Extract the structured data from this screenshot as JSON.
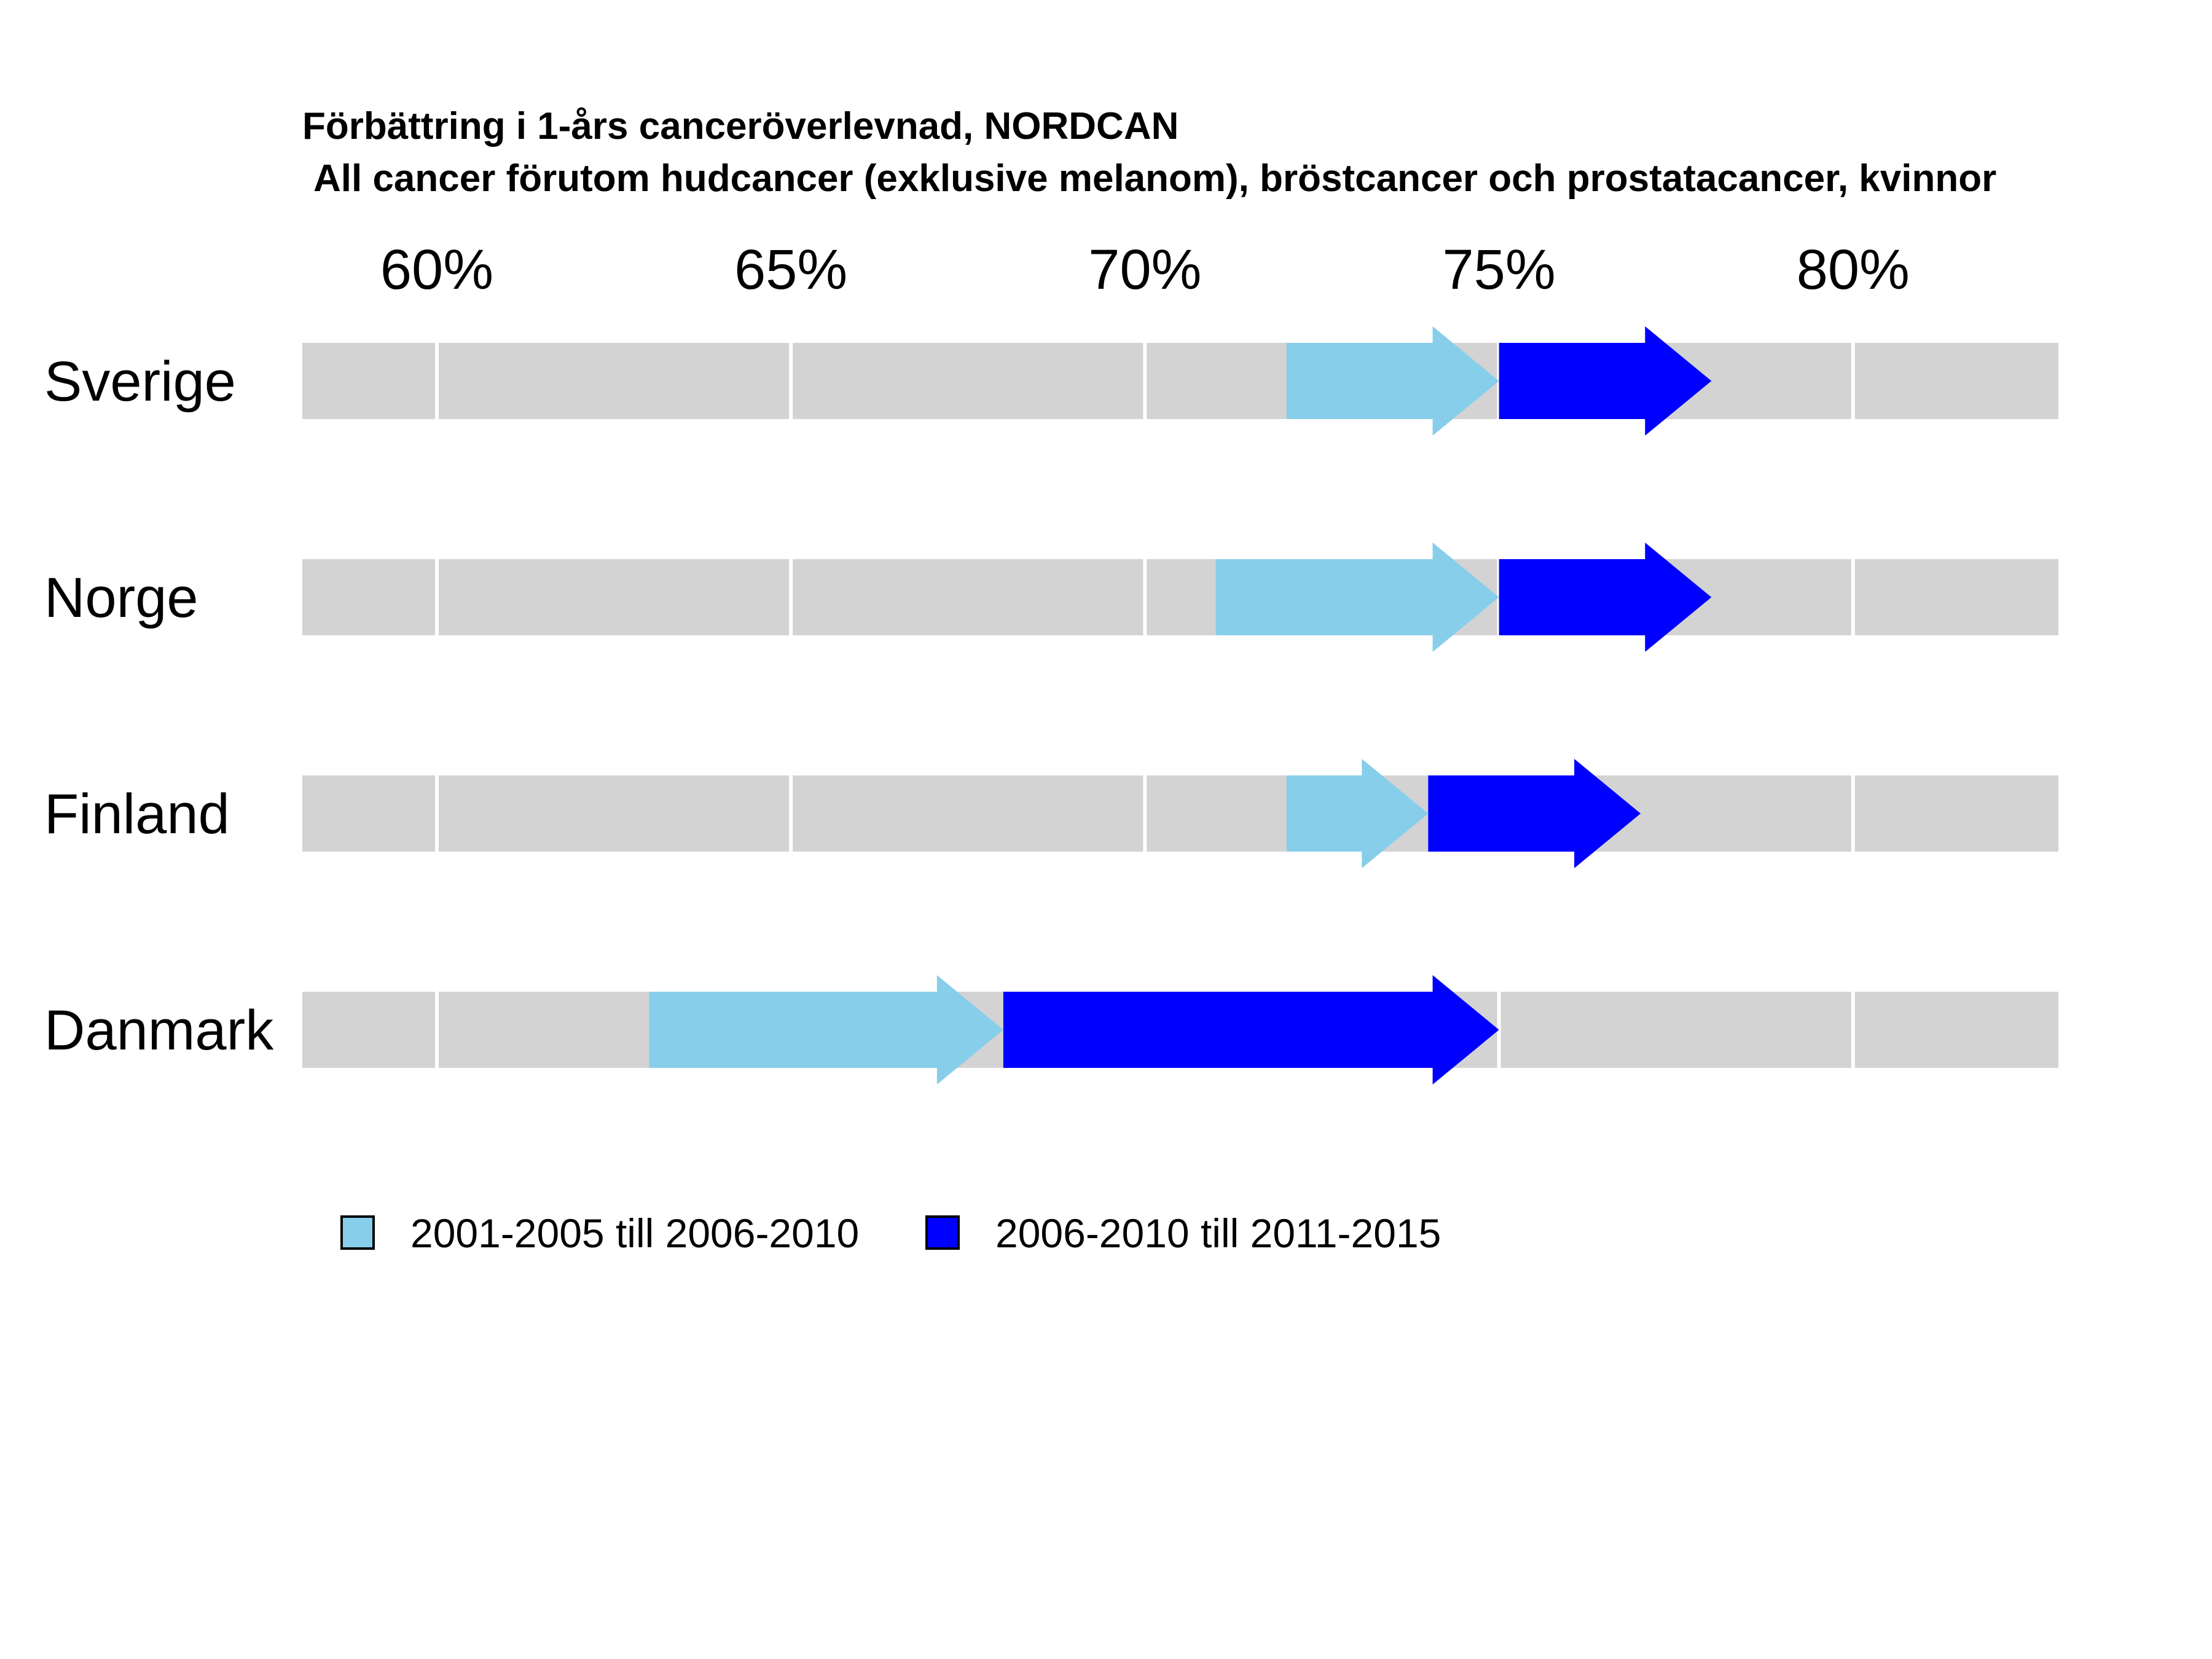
{
  "chart_data": {
    "type": "arrow-range",
    "title": "Förbättring i 1-års canceröverlevnad, NORDCAN",
    "subtitle": "All cancer förutom hudcancer (exklusive melanom), bröstcancer och prostatacancer, kvinnor",
    "x_ticks": [
      60,
      65,
      70,
      75,
      80
    ],
    "x_tick_labels": [
      "60%",
      "65%",
      "70%",
      "75%",
      "80%"
    ],
    "xlim": [
      58.1,
      82.9
    ],
    "grid": true,
    "legend_position": "bottom",
    "series": [
      {
        "name": "2001-2005 till 2006-2010",
        "color": "#87CEEB"
      },
      {
        "name": "2006-2010 till 2011-2015",
        "color": "#0000FF"
      }
    ],
    "categories": [
      "Sverige",
      "Norge",
      "Finland",
      "Danmark"
    ],
    "rows": [
      {
        "country": "Sverige",
        "p2001_2005": 72.0,
        "p2006_2010": 75.0,
        "p2011_2015": 78.0
      },
      {
        "country": "Norge",
        "p2001_2005": 71.0,
        "p2006_2010": 75.0,
        "p2011_2015": 78.0
      },
      {
        "country": "Finland",
        "p2001_2005": 72.0,
        "p2006_2010": 74.0,
        "p2011_2015": 77.0
      },
      {
        "country": "Danmark",
        "p2001_2005": 63.0,
        "p2006_2010": 68.0,
        "p2011_2015": 75.0
      }
    ],
    "background_band_color": "#D3D3D3",
    "grid_color": "#FFFFFF"
  }
}
